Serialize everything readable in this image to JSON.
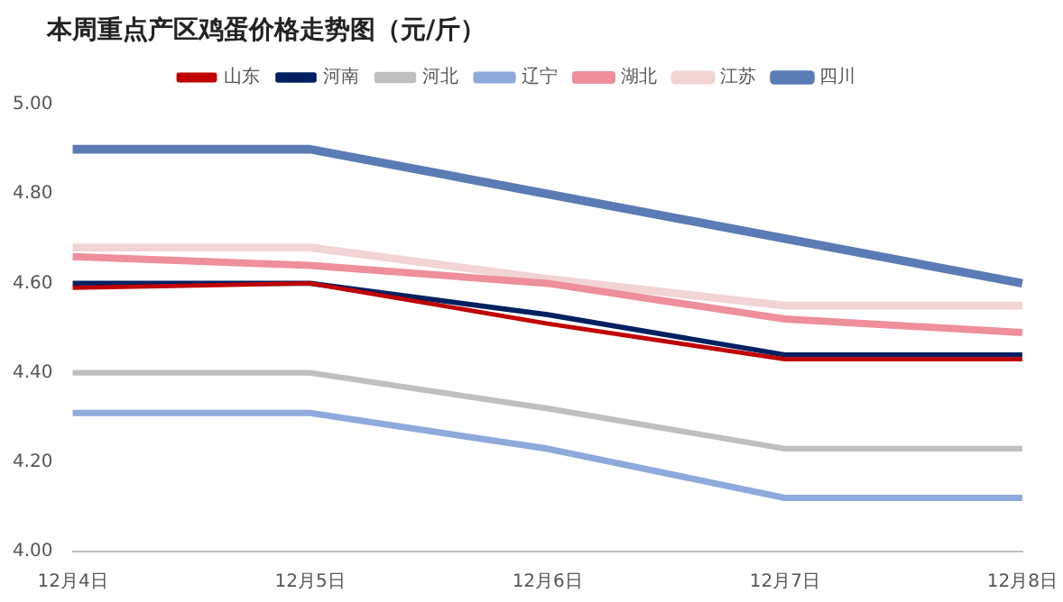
{
  "chart_data": {
    "type": "line",
    "title": "本周重点产区鸡蛋价格走势图（元/斤）",
    "categories": [
      "12月4日",
      "12月5日",
      "12月6日",
      "12月7日",
      "12月8日"
    ],
    "series": [
      {
        "name": "山东",
        "color": "#c00000",
        "values": [
          4.59,
          4.6,
          4.51,
          4.43,
          4.43
        ]
      },
      {
        "name": "河南",
        "color": "#002060",
        "values": [
          4.6,
          4.6,
          4.53,
          4.44,
          4.44
        ]
      },
      {
        "name": "河北",
        "color": "#bfbfbf",
        "values": [
          4.4,
          4.4,
          4.32,
          4.23,
          4.23
        ]
      },
      {
        "name": "辽宁",
        "color": "#8ea9db",
        "values": [
          4.31,
          4.31,
          4.23,
          4.12,
          4.12
        ]
      },
      {
        "name": "湖北",
        "color": "#ee8f9b",
        "values": [
          4.66,
          4.64,
          4.6,
          4.52,
          4.49
        ]
      },
      {
        "name": "江苏",
        "color": "#f2d4d4",
        "values": [
          4.68,
          4.68,
          4.61,
          4.55,
          4.55
        ]
      },
      {
        "name": "四川",
        "color": "#5b7bb5",
        "values": [
          4.9,
          4.9,
          4.8,
          4.7,
          4.6
        ]
      }
    ],
    "ylim": [
      4.0,
      5.0
    ],
    "yticks": [
      {
        "value": 4.0,
        "label": "4.00"
      },
      {
        "value": 4.2,
        "label": "4.20"
      },
      {
        "value": 4.4,
        "label": "4.40"
      },
      {
        "value": 4.6,
        "label": "4.60"
      },
      {
        "value": 4.8,
        "label": "4.80"
      },
      {
        "value": 5.0,
        "label": "5.00"
      }
    ],
    "grid": false,
    "legend": "top",
    "marker": "none",
    "line_style": "solid"
  }
}
